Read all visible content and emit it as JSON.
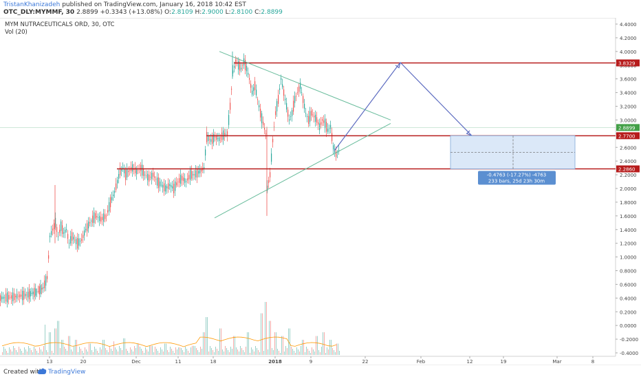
{
  "header": {
    "author": "TristanKhanizadeh",
    "published": "published on TradingView.com, January 16, 2018 10:42 EST",
    "symbol": "OTC_DLY:MYMMF, 30",
    "last": "2.8899",
    "change": "+0.3343 (+13.08%)",
    "o_label": "O:",
    "o_val": "2.8109",
    "h_label": "H:",
    "h_val": "2.9000",
    "l_label": "L:",
    "l_val": "2.8100",
    "c_label": "C:",
    "c_val": "2.8899"
  },
  "chart_info": {
    "name": "MYM NUTRACEUTICALS ORD, 30, OTC",
    "volume": "Vol (20)"
  },
  "footer": {
    "created": "Created with",
    "brand": "TradingView"
  },
  "colors": {
    "up": "#26a69a",
    "down": "#ef5350",
    "level": "#b71c1c",
    "trend": "#66bb9a",
    "arrow": "#5c6bc0",
    "box": "#dbe8f8",
    "price_tag": "#43a047"
  },
  "chart_data": {
    "type": "candlestick",
    "y_ticks": [
      "4.4000",
      "4.2000",
      "4.0000",
      "3.8000",
      "3.6000",
      "3.4000",
      "3.2000",
      "3.0000",
      "2.8000",
      "2.6000",
      "2.4000",
      "2.2000",
      "2.0000",
      "1.8000",
      "1.6000",
      "1.4000",
      "1.2000",
      "1.0000",
      "0.8000",
      "0.6000",
      "0.4000",
      "0.2000",
      "0.0000",
      "-0.2000",
      "-0.4000"
    ],
    "x_ticks": [
      "13",
      "20",
      "Dec",
      "11",
      "18",
      "2018",
      "9",
      "22",
      "Feb",
      "12",
      "19",
      "Mar",
      "8"
    ],
    "ylim": [
      -0.4,
      4.4
    ],
    "price_path": [
      [
        0,
        0.4
      ],
      [
        20,
        0.42
      ],
      [
        40,
        0.45
      ],
      [
        55,
        0.5
      ],
      [
        62,
        0.55
      ],
      [
        68,
        0.7
      ],
      [
        72,
        1.3
      ],
      [
        76,
        1.4
      ],
      [
        80,
        1.5
      ],
      [
        84,
        1.3
      ],
      [
        88,
        1.45
      ],
      [
        92,
        1.35
      ],
      [
        96,
        1.4
      ],
      [
        100,
        1.2
      ],
      [
        104,
        1.3
      ],
      [
        108,
        1.25
      ],
      [
        112,
        1.2
      ],
      [
        118,
        1.25
      ],
      [
        124,
        1.4
      ],
      [
        130,
        1.5
      ],
      [
        138,
        1.6
      ],
      [
        146,
        1.55
      ],
      [
        154,
        1.6
      ],
      [
        160,
        1.8
      ],
      [
        166,
        1.95
      ],
      [
        170,
        2.1
      ],
      [
        174,
        2.25
      ],
      [
        178,
        2.3
      ],
      [
        182,
        2.2
      ],
      [
        186,
        2.25
      ],
      [
        192,
        2.3
      ],
      [
        198,
        2.25
      ],
      [
        204,
        2.3
      ],
      [
        210,
        2.2
      ],
      [
        216,
        2.15
      ],
      [
        222,
        2.2
      ],
      [
        228,
        2.1
      ],
      [
        234,
        2.05
      ],
      [
        240,
        2.0
      ],
      [
        246,
        2.05
      ],
      [
        252,
        2.0
      ],
      [
        258,
        2.1
      ],
      [
        264,
        2.15
      ],
      [
        270,
        2.1
      ],
      [
        276,
        2.2
      ],
      [
        282,
        2.2
      ],
      [
        290,
        2.25
      ],
      [
        296,
        2.3
      ],
      [
        300,
        2.75
      ],
      [
        306,
        2.7
      ],
      [
        312,
        2.75
      ],
      [
        318,
        2.72
      ],
      [
        324,
        2.78
      ],
      [
        330,
        2.8
      ],
      [
        334,
        3.2
      ],
      [
        338,
        3.7
      ],
      [
        342,
        3.85
      ],
      [
        346,
        3.8
      ],
      [
        350,
        3.75
      ],
      [
        354,
        3.85
      ],
      [
        358,
        3.75
      ],
      [
        362,
        3.6
      ],
      [
        366,
        3.4
      ],
      [
        370,
        3.5
      ],
      [
        374,
        3.3
      ],
      [
        378,
        3.1
      ],
      [
        382,
        2.95
      ],
      [
        386,
        2.8
      ],
      [
        388,
        2.0
      ],
      [
        392,
        2.2
      ],
      [
        396,
        2.7
      ],
      [
        400,
        3.1
      ],
      [
        404,
        3.3
      ],
      [
        408,
        3.6
      ],
      [
        412,
        3.4
      ],
      [
        416,
        3.2
      ],
      [
        420,
        3.0
      ],
      [
        424,
        3.1
      ],
      [
        428,
        3.3
      ],
      [
        432,
        3.4
      ],
      [
        436,
        3.5
      ],
      [
        440,
        3.3
      ],
      [
        444,
        3.1
      ],
      [
        448,
        3.0
      ],
      [
        452,
        3.1
      ],
      [
        456,
        3.05
      ],
      [
        460,
        3.0
      ],
      [
        464,
        2.9
      ],
      [
        468,
        3.0
      ],
      [
        472,
        2.95
      ],
      [
        476,
        2.85
      ],
      [
        480,
        2.9
      ],
      [
        484,
        2.6
      ],
      [
        488,
        2.5
      ],
      [
        492,
        2.55
      ],
      [
        494,
        2.89
      ]
    ],
    "volume_spikes": [
      [
        65,
        0.4
      ],
      [
        72,
        0.3
      ],
      [
        80,
        0.35
      ],
      [
        84,
        0.45
      ],
      [
        90,
        0.2
      ],
      [
        100,
        0.25
      ],
      [
        110,
        0.2
      ],
      [
        130,
        0.15
      ],
      [
        150,
        0.2
      ],
      [
        165,
        0.18
      ],
      [
        180,
        0.22
      ],
      [
        200,
        0.15
      ],
      [
        220,
        0.12
      ],
      [
        240,
        0.15
      ],
      [
        260,
        0.1
      ],
      [
        280,
        0.12
      ],
      [
        296,
        0.3
      ],
      [
        300,
        0.5
      ],
      [
        320,
        0.35
      ],
      [
        340,
        0.25
      ],
      [
        360,
        0.3
      ],
      [
        380,
        0.55
      ],
      [
        386,
        0.7
      ],
      [
        392,
        0.45
      ],
      [
        400,
        0.3
      ],
      [
        410,
        0.25
      ],
      [
        420,
        0.35
      ],
      [
        440,
        0.2
      ],
      [
        460,
        0.25
      ],
      [
        470,
        0.3
      ],
      [
        480,
        0.2
      ],
      [
        490,
        0.15
      ]
    ],
    "levels": [
      {
        "value": 3.8329,
        "label": "3.8329"
      },
      {
        "value": 2.77,
        "label": "2.7700"
      },
      {
        "value": 2.286,
        "label": "2.2860"
      }
    ],
    "last_price": {
      "value": 2.8899,
      "label": "2.8899"
    },
    "measure": {
      "line1": "-0.4763 (-17.27%) -4763",
      "line2": "233 bars, 25d 23h 30m"
    }
  }
}
